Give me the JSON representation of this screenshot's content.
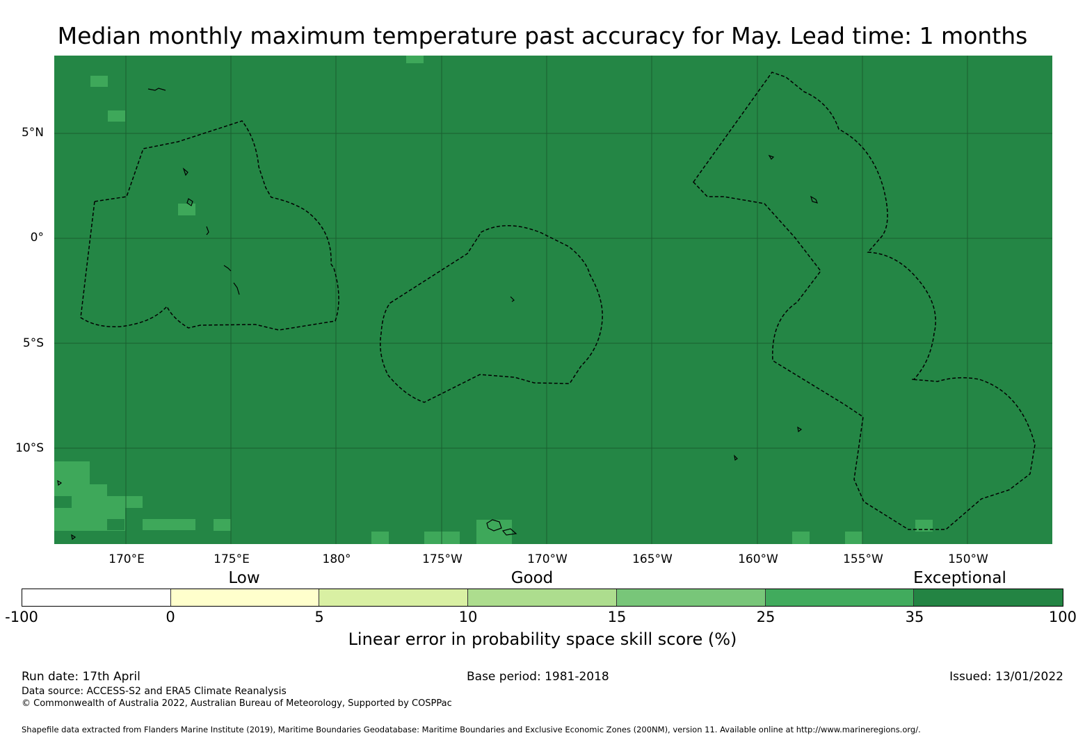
{
  "title": "Median monthly maximum temperature past accuracy for May. Lead time: 1 months",
  "map": {
    "background_color": "#248645",
    "grid_color": "#1a5e30",
    "light_cell_color": "#3ea85a",
    "lat_labels": [
      "5°N",
      "0°",
      "5°S",
      "10°S"
    ],
    "lon_labels": [
      "170°E",
      "175°E",
      "180°",
      "175°W",
      "170°W",
      "165°W",
      "160°W",
      "155°W",
      "150°W"
    ]
  },
  "legend": {
    "categories": [
      "Low",
      "Good",
      "Exceptional"
    ],
    "segments": [
      {
        "from": -100,
        "to": 0,
        "color": "#ffffff"
      },
      {
        "from": 0,
        "to": 5,
        "color": "#ffffcc"
      },
      {
        "from": 5,
        "to": 10,
        "color": "#d9f0a3"
      },
      {
        "from": 10,
        "to": 15,
        "color": "#addd8e"
      },
      {
        "from": 15,
        "to": 25,
        "color": "#78c679"
      },
      {
        "from": 25,
        "to": 35,
        "color": "#41ab5d"
      },
      {
        "from": 35,
        "to": 100,
        "color": "#238443"
      }
    ],
    "ticks": [
      "-100",
      "0",
      "5",
      "10",
      "15",
      "25",
      "35",
      "100"
    ],
    "title": "Linear error in probability space skill score (%)"
  },
  "footer": {
    "run_date": "Run date: 17th April",
    "base_period": "Base period: 1981-2018",
    "issued": "Issued: 13/01/2022",
    "data_source": "Data source: ACCESS-S2 and ERA5 Climate Reanalysis",
    "copyright": "© Commonwealth of Australia 2022, Australian Bureau of Meteorology, Supported by COSPPac",
    "shapefile": "Shapefile data extracted from Flanders Marine Institute (2019), Maritime Boundaries Geodatabase: Maritime Boundaries and Exclusive Economic Zones (200NM), version 11. Available online at http://www.marineregions.org/."
  }
}
